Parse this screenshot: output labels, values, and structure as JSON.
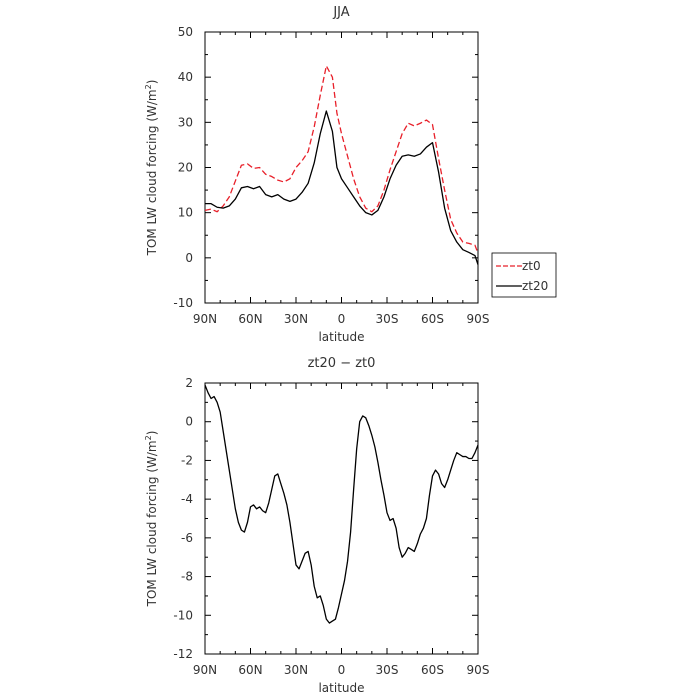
{
  "chart_data": [
    {
      "type": "line",
      "title": "JJA",
      "xlabel": "latitude",
      "ylabel_main": "TOM LW cloud forcing (W/m",
      "ylabel_sup": "2",
      "ylabel_close": ")",
      "xlim": [
        90,
        -90
      ],
      "ylim": [
        -10,
        50
      ],
      "x_ticks": [
        {
          "value": 90,
          "label": "90N"
        },
        {
          "value": 60,
          "label": "60N"
        },
        {
          "value": 30,
          "label": "30N"
        },
        {
          "value": 0,
          "label": "0"
        },
        {
          "value": -30,
          "label": "30S"
        },
        {
          "value": -60,
          "label": "60S"
        },
        {
          "value": -90,
          "label": "90S"
        }
      ],
      "y_ticks": [
        -10,
        0,
        10,
        20,
        30,
        40,
        50
      ],
      "legend_position": "right-outside-bottom",
      "grid": false,
      "series": [
        {
          "name": "zt0",
          "color": "#e8202a",
          "dash": "dashed",
          "x": [
            90,
            86,
            82,
            78,
            74,
            70,
            66,
            62,
            58,
            54,
            50,
            46,
            42,
            38,
            34,
            30,
            26,
            22,
            18,
            14,
            10,
            6,
            3,
            0,
            -4,
            -8,
            -12,
            -16,
            -20,
            -24,
            -28,
            -32,
            -36,
            -40,
            -44,
            -48,
            -52,
            -56,
            -60,
            -64,
            -68,
            -72,
            -76,
            -80,
            -84,
            -88,
            -90
          ],
          "y": [
            10.5,
            10.8,
            10.2,
            11.5,
            13.5,
            17.0,
            20.5,
            20.8,
            19.8,
            20.0,
            18.5,
            18.0,
            17.2,
            16.8,
            17.5,
            20.0,
            21.5,
            23.5,
            29.0,
            36.0,
            42.5,
            40.0,
            32.0,
            27.5,
            22.5,
            17.5,
            13.5,
            11.0,
            10.2,
            11.5,
            15.0,
            19.5,
            23.5,
            27.5,
            29.8,
            29.2,
            29.8,
            30.5,
            29.5,
            22.0,
            15.0,
            8.5,
            5.5,
            3.5,
            3.2,
            2.8,
            1.0
          ]
        },
        {
          "name": "zt20",
          "color": "#000000",
          "dash": "solid",
          "x": [
            90,
            86,
            82,
            78,
            74,
            70,
            66,
            62,
            58,
            54,
            50,
            46,
            42,
            38,
            34,
            30,
            26,
            22,
            18,
            14,
            10,
            6,
            3,
            0,
            -4,
            -8,
            -12,
            -16,
            -20,
            -24,
            -28,
            -32,
            -36,
            -40,
            -44,
            -48,
            -52,
            -56,
            -60,
            -64,
            -68,
            -72,
            -76,
            -80,
            -84,
            -88,
            -90
          ],
          "y": [
            12.0,
            12.0,
            11.2,
            11.0,
            11.5,
            13.0,
            15.5,
            15.8,
            15.3,
            15.8,
            14.0,
            13.5,
            14.0,
            13.0,
            12.5,
            13.0,
            14.5,
            16.5,
            21.0,
            27.5,
            32.5,
            28.0,
            20.0,
            17.5,
            15.5,
            13.5,
            11.5,
            10.0,
            9.5,
            10.5,
            13.5,
            17.5,
            20.5,
            22.5,
            22.8,
            22.5,
            23.0,
            24.5,
            25.5,
            19.0,
            11.0,
            6.0,
            3.5,
            1.8,
            1.2,
            0.5,
            -1.5
          ]
        }
      ]
    },
    {
      "type": "line",
      "title": "zt20 − zt0",
      "xlabel": "latitude",
      "ylabel_main": "TOM LW cloud forcing (W/m",
      "ylabel_sup": "2",
      "ylabel_close": ")",
      "xlim": [
        90,
        -90
      ],
      "ylim": [
        -12,
        2
      ],
      "x_ticks": [
        {
          "value": 90,
          "label": "90N"
        },
        {
          "value": 60,
          "label": "60N"
        },
        {
          "value": 30,
          "label": "30N"
        },
        {
          "value": 0,
          "label": "0"
        },
        {
          "value": -30,
          "label": "30S"
        },
        {
          "value": -60,
          "label": "60S"
        },
        {
          "value": -90,
          "label": "90S"
        }
      ],
      "y_ticks": [
        -12,
        -10,
        -8,
        -6,
        -4,
        -2,
        0,
        2
      ],
      "grid": false,
      "series": [
        {
          "color": "#000000",
          "dash": "solid",
          "x": [
            90,
            88,
            86,
            84,
            82,
            80,
            78,
            76,
            74,
            72,
            70,
            68,
            66,
            64,
            62,
            60,
            58,
            56,
            54,
            52,
            50,
            48,
            46,
            44,
            42,
            40,
            38,
            36,
            34,
            32,
            30,
            28,
            26,
            24,
            22,
            20,
            18,
            16,
            14,
            12,
            10,
            8,
            6,
            4,
            2,
            0,
            -2,
            -4,
            -6,
            -8,
            -10,
            -12,
            -14,
            -16,
            -18,
            -20,
            -22,
            -24,
            -26,
            -28,
            -30,
            -32,
            -34,
            -36,
            -38,
            -40,
            -42,
            -44,
            -46,
            -48,
            -50,
            -52,
            -54,
            -56,
            -58,
            -60,
            -62,
            -64,
            -66,
            -68,
            -70,
            -72,
            -74,
            -76,
            -78,
            -80,
            -82,
            -84,
            -86,
            -88,
            -90
          ],
          "y": [
            1.9,
            1.5,
            1.2,
            1.3,
            1.0,
            0.5,
            -0.5,
            -1.5,
            -2.5,
            -3.5,
            -4.5,
            -5.2,
            -5.6,
            -5.7,
            -5.2,
            -4.4,
            -4.3,
            -4.5,
            -4.4,
            -4.6,
            -4.7,
            -4.2,
            -3.5,
            -2.8,
            -2.7,
            -3.2,
            -3.7,
            -4.3,
            -5.2,
            -6.3,
            -7.4,
            -7.6,
            -7.2,
            -6.8,
            -6.7,
            -7.4,
            -8.5,
            -9.1,
            -9.0,
            -9.5,
            -10.2,
            -10.4,
            -10.3,
            -10.2,
            -9.6,
            -8.9,
            -8.2,
            -7.2,
            -5.7,
            -3.5,
            -1.4,
            0.0,
            0.3,
            0.2,
            -0.2,
            -0.7,
            -1.3,
            -2.1,
            -3.0,
            -3.8,
            -4.7,
            -5.1,
            -5.0,
            -5.5,
            -6.5,
            -7.0,
            -6.8,
            -6.5,
            -6.6,
            -6.7,
            -6.3,
            -5.8,
            -5.5,
            -5.0,
            -3.8,
            -2.8,
            -2.5,
            -2.7,
            -3.2,
            -3.4,
            -3.0,
            -2.5,
            -2.0,
            -1.6,
            -1.7,
            -1.8,
            -1.8,
            -1.9,
            -1.9,
            -1.6,
            -1.2
          ]
        }
      ]
    }
  ]
}
